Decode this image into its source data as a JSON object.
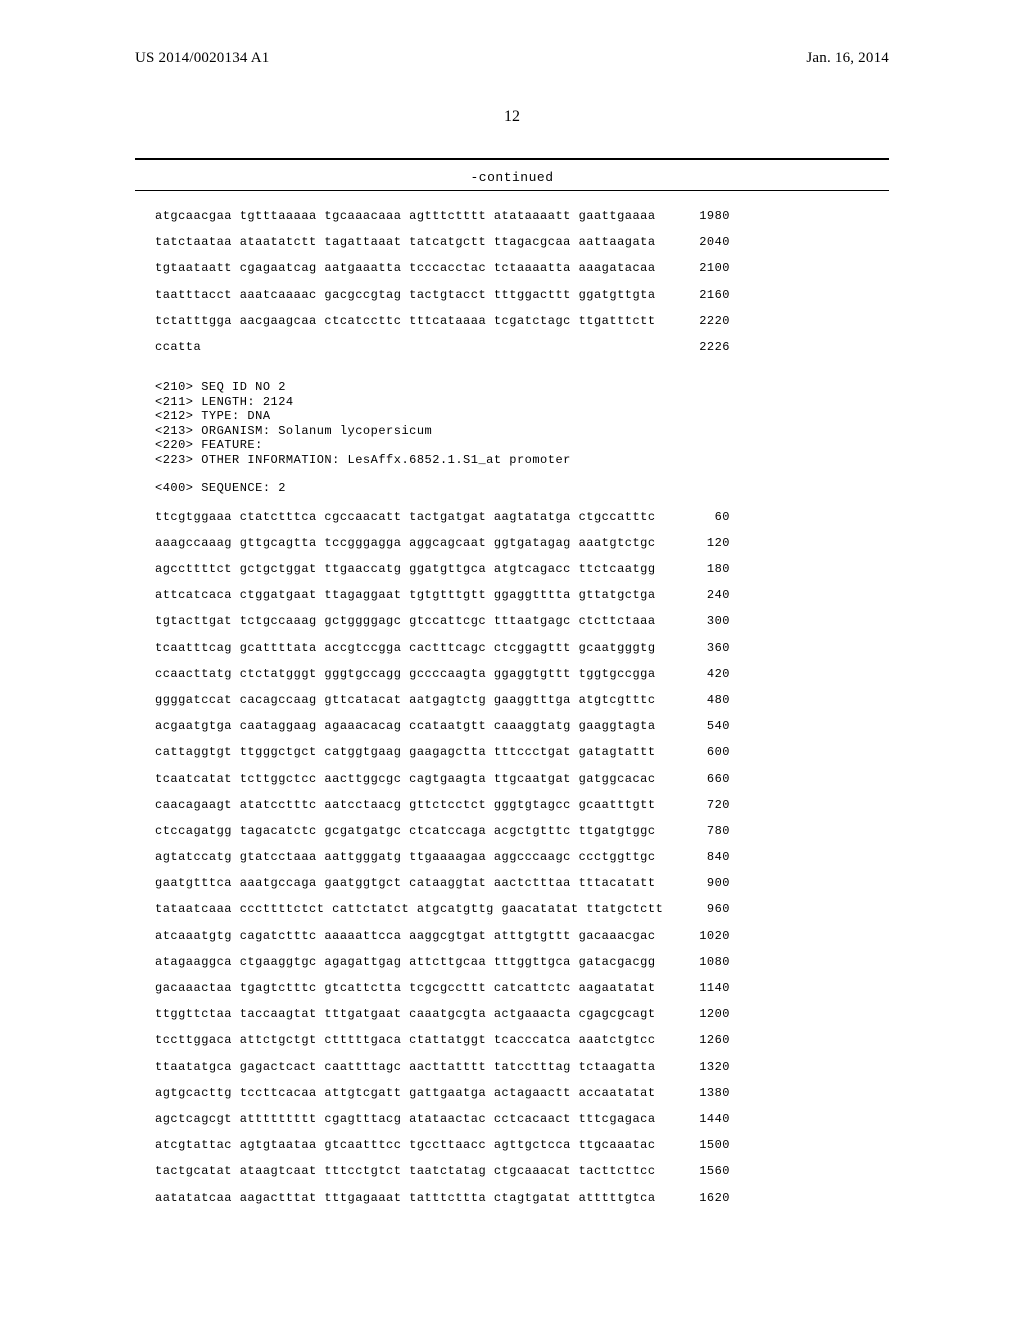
{
  "header": {
    "pub_no": "US 2014/0020134 A1",
    "pub_date": "Jan. 16, 2014"
  },
  "page_number": "12",
  "continued_label": "-continued",
  "block1": {
    "rows": [
      {
        "seq": "atgcaacgaa tgtttaaaaa tgcaaacaaa agtttctttt atataaaatt gaattgaaaa",
        "pos": "1980"
      },
      {
        "seq": "tatctaataa ataatatctt tagattaaat tatcatgctt ttagacgcaa aattaagata",
        "pos": "2040"
      },
      {
        "seq": "tgtaataatt cgagaatcag aatgaaatta tcccacctac tctaaaatta aaagatacaa",
        "pos": "2100"
      },
      {
        "seq": "taatttacct aaatcaaaac gacgccgtag tactgtacct tttggacttt ggatgttgta",
        "pos": "2160"
      },
      {
        "seq": "tctatttgga aacgaagcaa ctcatccttc tttcataaaa tcgatctagc ttgatttctt",
        "pos": "2220"
      },
      {
        "seq": "ccatta",
        "pos": "2226"
      }
    ]
  },
  "meta": {
    "lines": [
      "<210> SEQ ID NO 2",
      "<211> LENGTH: 2124",
      "<212> TYPE: DNA",
      "<213> ORGANISM: Solanum lycopersicum",
      "<220> FEATURE:",
      "<223> OTHER INFORMATION: LesAffx.6852.1.S1_at promoter"
    ],
    "sequence_label": "<400> SEQUENCE: 2"
  },
  "block2": {
    "rows": [
      {
        "seq": "ttcgtggaaa ctatctttca cgccaacatt tactgatgat aagtatatga ctgccatttc",
        "pos": "60"
      },
      {
        "seq": "aaagccaaag gttgcagtta tccgggagga aggcagcaat ggtgatagag aaatgtctgc",
        "pos": "120"
      },
      {
        "seq": "agccttttct gctgctggat ttgaaccatg ggatgttgca atgtcagacc ttctcaatgg",
        "pos": "180"
      },
      {
        "seq": "attcatcaca ctggatgaat ttagaggaat tgtgtttgtt ggaggtttta gttatgctga",
        "pos": "240"
      },
      {
        "seq": "tgtacttgat tctgccaaag gctggggagc gtccattcgc tttaatgagc ctcttctaaa",
        "pos": "300"
      },
      {
        "seq": "tcaatttcag gcattttata accgtccgga cactttcagc ctcggagttt gcaatgggtg",
        "pos": "360"
      },
      {
        "seq": "ccaacttatg ctctatgggt gggtgccagg gccccaagta ggaggtgttt tggtgccgga",
        "pos": "420"
      },
      {
        "seq": "ggggatccat cacagccaag gttcatacat aatgagtctg gaaggtttga atgtcgtttc",
        "pos": "480"
      },
      {
        "seq": "acgaatgtga caataggaag agaaacacag ccataatgtt caaaggtatg gaaggtagta",
        "pos": "540"
      },
      {
        "seq": "cattaggtgt ttgggctgct catggtgaag gaagagctta tttccctgat gatagtattt",
        "pos": "600"
      },
      {
        "seq": "tcaatcatat tcttggctcc aacttggcgc cagtgaagta ttgcaatgat gatggcacac",
        "pos": "660"
      },
      {
        "seq": "caacagaagt atatcctttc aatcctaacg gttctcctct gggtgtagcc gcaatttgtt",
        "pos": "720"
      },
      {
        "seq": "ctccagatgg tagacatctc gcgatgatgc ctcatccaga acgctgtttc ttgatgtggc",
        "pos": "780"
      },
      {
        "seq": "agtatccatg gtatcctaaa aattgggatg ttgaaaagaa aggcccaagc ccctggttgc",
        "pos": "840"
      },
      {
        "seq": "gaatgtttca aaatgccaga gaatggtgct cataaggtat aactctttaa tttacatatt",
        "pos": "900"
      },
      {
        "seq": "tataatcaaa cccttttctct cattctatct atgcatgttg gaacatatat ttatgctctt",
        "pos": "960"
      },
      {
        "seq": "atcaaatgtg cagatctttc aaaaattcca aaggcgtgat atttgtgttt gacaaacgac",
        "pos": "1020"
      },
      {
        "seq": "atagaaggca ctgaaggtgc agagattgag attcttgcaa tttggttgca gatacgacgg",
        "pos": "1080"
      },
      {
        "seq": "gacaaactaa tgagtctttc gtcattctta tcgcgccttt catcattctc aagaatatat",
        "pos": "1140"
      },
      {
        "seq": "ttggttctaa taccaagtat tttgatgaat caaatgcgta actgaaacta cgagcgcagt",
        "pos": "1200"
      },
      {
        "seq": "tccttggaca attctgctgt ctttttgaca ctattatggt tcacccatca aaatctgtcc",
        "pos": "1260"
      },
      {
        "seq": "ttaatatgca gagactcact caattttagc aacttatttt tatcctttag tctaagatta",
        "pos": "1320"
      },
      {
        "seq": "agtgcacttg tccttcacaa attgtcgatt gattgaatga actagaactt accaatatat",
        "pos": "1380"
      },
      {
        "seq": "agctcagcgt attttttttt cgagtttacg atataactac cctcacaact tttcgagaca",
        "pos": "1440"
      },
      {
        "seq": "atcgtattac agtgtaataa gtcaatttcc tgccttaacc agttgctcca ttgcaaatac",
        "pos": "1500"
      },
      {
        "seq": "tactgcatat ataagtcaat tttcctgtct taatctatag ctgcaaacat tacttcttcc",
        "pos": "1560"
      },
      {
        "seq": "aatatatcaa aagactttat tttgagaaat tatttcttta ctagtgatat atttttgtca",
        "pos": "1620"
      }
    ]
  },
  "style": {
    "font_mono": "Courier New",
    "font_serif": "Times New Roman",
    "font_size_seq": 12,
    "font_size_header": 15,
    "text_color": "#000000",
    "bg_color": "#ffffff",
    "rule_thick": 2,
    "rule_thin": 0.8
  }
}
